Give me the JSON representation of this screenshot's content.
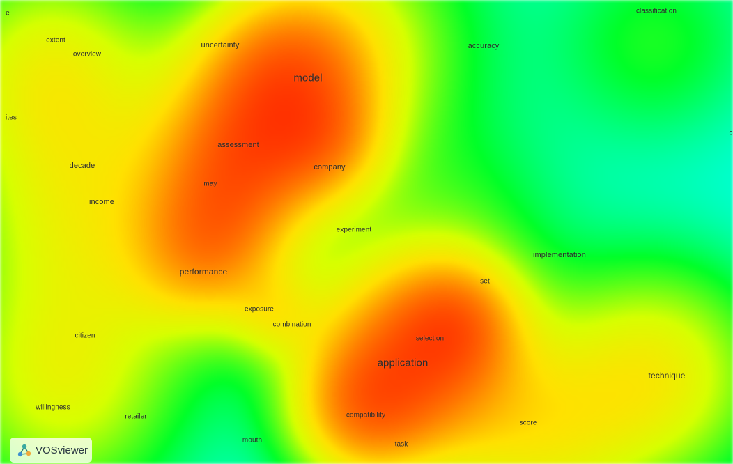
{
  "terms": [
    {
      "id": "e-fragment",
      "text": "e",
      "size": 10
    },
    {
      "id": "classification",
      "text": "classification",
      "size": 10
    },
    {
      "id": "extent",
      "text": "extent",
      "size": 10
    },
    {
      "id": "overview",
      "text": "overview",
      "size": 10
    },
    {
      "id": "uncertainty",
      "text": "uncertainty",
      "size": 11
    },
    {
      "id": "accuracy",
      "text": "accuracy",
      "size": 11
    },
    {
      "id": "model",
      "text": "model",
      "size": 15
    },
    {
      "id": "ites-fragment",
      "text": "ites",
      "size": 10
    },
    {
      "id": "assessment",
      "text": "assessment",
      "size": 11
    },
    {
      "id": "decade",
      "text": "decade",
      "size": 11
    },
    {
      "id": "company",
      "text": "company",
      "size": 11
    },
    {
      "id": "may",
      "text": "may",
      "size": 10
    },
    {
      "id": "income",
      "text": "income",
      "size": 11
    },
    {
      "id": "experiment",
      "text": "experiment",
      "size": 10
    },
    {
      "id": "implementation",
      "text": "implementation",
      "size": 11
    },
    {
      "id": "performance",
      "text": "performance",
      "size": 12
    },
    {
      "id": "set",
      "text": "set",
      "size": 10
    },
    {
      "id": "exposure",
      "text": "exposure",
      "size": 10
    },
    {
      "id": "combination",
      "text": "combination",
      "size": 10
    },
    {
      "id": "citizen",
      "text": "citizen",
      "size": 10
    },
    {
      "id": "selection",
      "text": "selection",
      "size": 10
    },
    {
      "id": "application",
      "text": "application",
      "size": 15
    },
    {
      "id": "technique",
      "text": "technique",
      "size": 12
    },
    {
      "id": "willingness",
      "text": "willingness",
      "size": 10
    },
    {
      "id": "retailer",
      "text": "retailer",
      "size": 10
    },
    {
      "id": "compatibility",
      "text": "compatibility",
      "size": 10
    },
    {
      "id": "score",
      "text": "score",
      "size": 10
    },
    {
      "id": "mouth",
      "text": "mouth",
      "size": 10
    },
    {
      "id": "task",
      "text": "task",
      "size": 10
    },
    {
      "id": "c-fragment",
      "text": "c",
      "size": 10
    }
  ],
  "logo": {
    "text": "VOSviewer"
  },
  "density": {
    "hotspots": [
      {
        "name": "model-cluster",
        "weight": 1.0
      },
      {
        "name": "application-cluster",
        "weight": 1.0
      }
    ],
    "colors": {
      "low": "#00ffff",
      "mid_low": "#00ff00",
      "mid": "#ffff00",
      "mid_high": "#ff8000",
      "high": "#ff0000"
    }
  }
}
